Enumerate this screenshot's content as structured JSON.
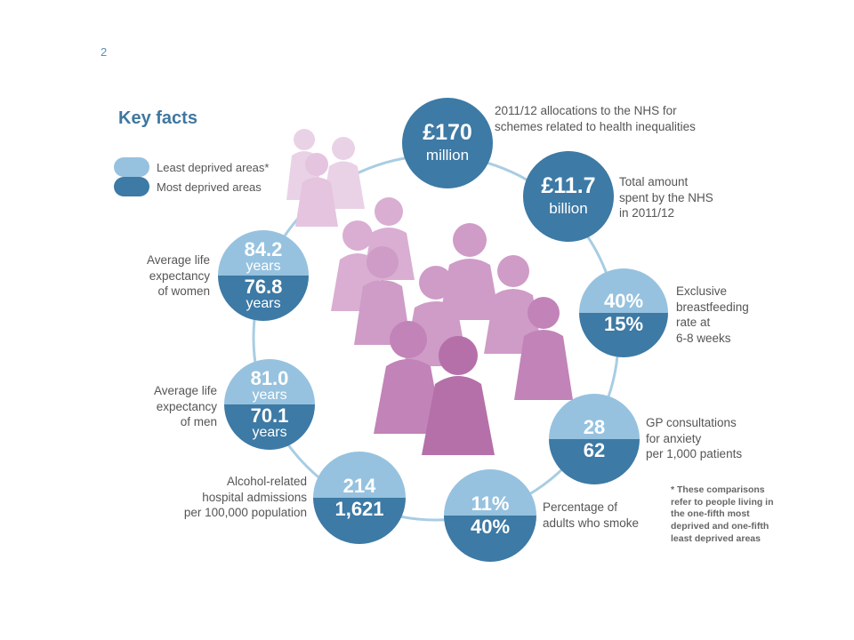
{
  "page_number": "2",
  "heading": "Key facts",
  "legend": [
    {
      "label": "Least deprived areas*",
      "color": "#96c2df"
    },
    {
      "label": "Most deprived areas",
      "color": "#3d7aa5"
    }
  ],
  "facts": {
    "nhs_allocations": {
      "value": "£170",
      "unit": "million",
      "label": "2011/12 allocations to the NHS for\nschemes related to health inequalities"
    },
    "nhs_total": {
      "value": "£11.7",
      "unit": "billion",
      "label": "Total amount\nspent by the NHS\nin 2011/12"
    },
    "breastfeeding": {
      "least": "40%",
      "most": "15%",
      "label": "Exclusive\nbreastfeeding\nrate at\n6-8 weeks"
    },
    "gp_consultations": {
      "least": "28",
      "most": "62",
      "label": "GP consultations\nfor anxiety\nper 1,000 patients"
    },
    "smoking": {
      "least": "11%",
      "most": "40%",
      "label": "Percentage of\nadults who smoke"
    },
    "alcohol": {
      "least": "214",
      "most": "1,621",
      "label": "Alcohol-related\nhospital admissions\nper 100,000 population"
    },
    "life_men": {
      "least": "81.0",
      "least_unit": "years",
      "most": "70.1",
      "most_unit": "years",
      "label": "Average life\nexpectancy\nof men"
    },
    "life_women": {
      "least": "84.2",
      "least_unit": "years",
      "most": "76.8",
      "most_unit": "years",
      "label": "Average life\nexpectancy\nof women"
    }
  },
  "footnote": "* These comparisons refer to people living in the one-fifth most deprived and one-fifth least deprived areas",
  "colors": {
    "least": "#96c2df",
    "most": "#3d7aa5",
    "ring": "#a8cde3",
    "figures": "#c98fbf"
  }
}
